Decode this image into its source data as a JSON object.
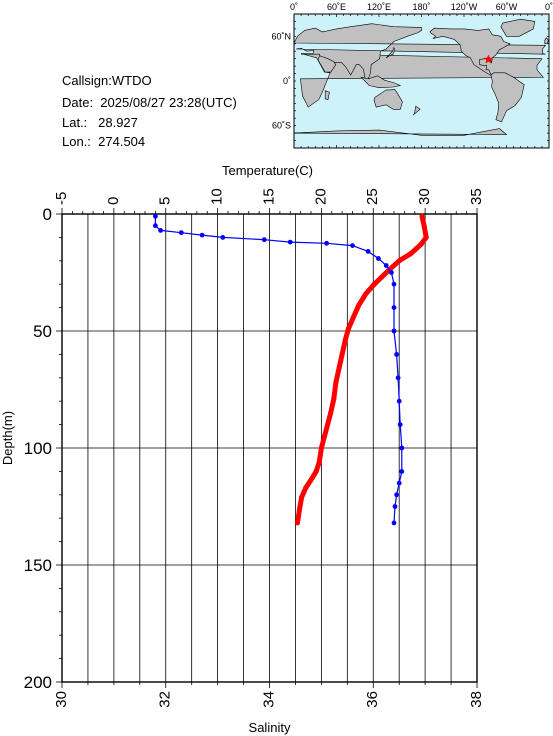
{
  "meta": {
    "callsign": "Callsign:WTDO",
    "date": "Date:  2025/08/27 23:28(UTC)",
    "lat": "Lat.:   28.927",
    "lon": "Lon.:  274.504"
  },
  "map": {
    "lon_labels": [
      "0˚",
      "60˚E",
      "120˚E",
      "180˚",
      "120˚W",
      "60˚W",
      "0˚"
    ],
    "lat_labels": [
      "60˚N",
      "0˚",
      "60˚S"
    ],
    "ocean_color": "#cdf2f9",
    "land_color": "#c0c0c0",
    "station_marker": {
      "lon": 274.504,
      "lat": 28.927,
      "color": "#ff0000",
      "symbol": "star"
    }
  },
  "chart_data": {
    "type": "line",
    "top_axis": {
      "label": "Temperature(C)",
      "range": [
        -5,
        35
      ],
      "ticks": [
        -5,
        0,
        5,
        10,
        15,
        20,
        25,
        30,
        35
      ]
    },
    "bottom_axis": {
      "label": "Salinity",
      "range": [
        30,
        38
      ],
      "ticks": [
        30,
        32,
        34,
        36,
        38
      ]
    },
    "y_axis": {
      "label": "Depth(m)",
      "range": [
        200,
        0
      ],
      "ticks": [
        0,
        50,
        100,
        150,
        200
      ]
    },
    "grid": true,
    "series": [
      {
        "quantity": "temperature",
        "color": "#ff0000",
        "axis": "top",
        "points": [
          [
            29.7,
            1
          ],
          [
            29.9,
            5
          ],
          [
            30.1,
            10
          ],
          [
            29.6,
            13
          ],
          [
            28.6,
            17
          ],
          [
            27.5,
            20
          ],
          [
            26.5,
            24
          ],
          [
            25.8,
            27
          ],
          [
            25.1,
            30
          ],
          [
            24.3,
            34
          ],
          [
            23.6,
            39
          ],
          [
            23.1,
            44
          ],
          [
            22.6,
            49
          ],
          [
            22.3,
            54
          ],
          [
            22.0,
            60
          ],
          [
            21.7,
            66
          ],
          [
            21.4,
            72
          ],
          [
            21.2,
            79
          ],
          [
            20.9,
            85
          ],
          [
            20.6,
            90
          ],
          [
            20.3,
            95
          ],
          [
            20.0,
            100
          ],
          [
            19.8,
            106
          ],
          [
            19.5,
            110
          ],
          [
            19.1,
            113
          ],
          [
            18.5,
            117
          ],
          [
            18.1,
            121
          ],
          [
            17.9,
            126
          ],
          [
            17.7,
            132
          ]
        ]
      },
      {
        "quantity": "salinity",
        "color": "#0000ff",
        "axis": "bottom",
        "points": [
          [
            31.8,
            1
          ],
          [
            31.8,
            5
          ],
          [
            31.9,
            7
          ],
          [
            32.3,
            8
          ],
          [
            32.7,
            9
          ],
          [
            33.1,
            10
          ],
          [
            33.9,
            11
          ],
          [
            34.4,
            12
          ],
          [
            35.1,
            12.5
          ],
          [
            35.6,
            13.5
          ],
          [
            35.9,
            16
          ],
          [
            36.1,
            19
          ],
          [
            36.25,
            22
          ],
          [
            36.35,
            25
          ],
          [
            36.4,
            30
          ],
          [
            36.4,
            40
          ],
          [
            36.4,
            50
          ],
          [
            36.45,
            60
          ],
          [
            36.48,
            70
          ],
          [
            36.5,
            80
          ],
          [
            36.52,
            90
          ],
          [
            36.55,
            100
          ],
          [
            36.55,
            110
          ],
          [
            36.5,
            115
          ],
          [
            36.45,
            120
          ],
          [
            36.42,
            125
          ],
          [
            36.4,
            132
          ]
        ]
      }
    ]
  }
}
